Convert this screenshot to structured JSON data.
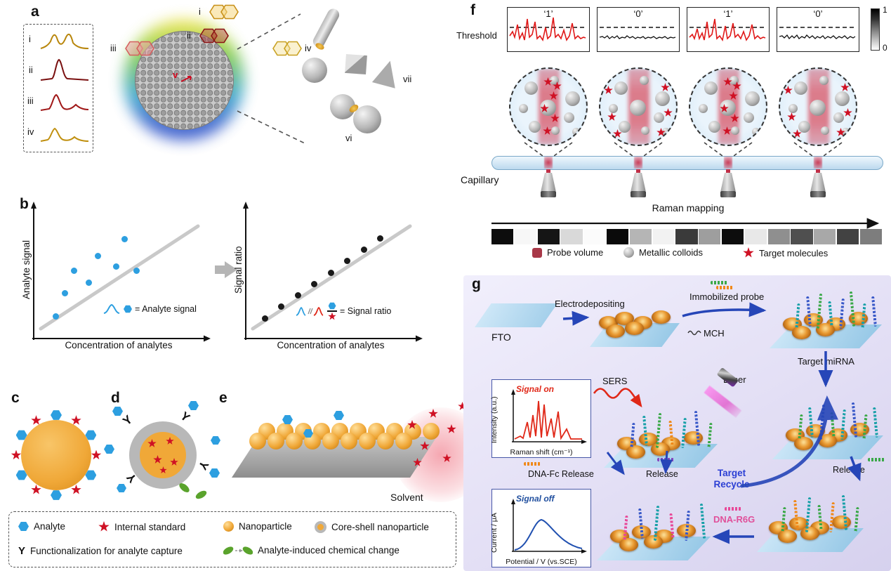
{
  "palette": {
    "analyte_blue": "#2d9fe0",
    "star_red": "#cf1124",
    "nano_orange": "#f0a838",
    "shell_gray": "#b8b8b8",
    "arrow_blue": "#2646b8",
    "signal_on_red": "#e02818",
    "signal_off_blue": "#1f4e9e",
    "recycle_blue": "#2b3fd4",
    "dna_r6g_pink": "#e0509a",
    "probe_red": "#a83848",
    "strand_teal": "#18a0a8",
    "strand_blue": "#3858c8",
    "strand_green": "#3aa848",
    "strand_orange": "#f08818",
    "strand_pink": "#e84898",
    "strand_purple": "#8848c0"
  },
  "panel_a": {
    "label": "a",
    "spectra": [
      {
        "label": "i"
      },
      {
        "label": "ii"
      },
      {
        "label": "iii"
      },
      {
        "label": "iv"
      }
    ],
    "molecules": [
      {
        "label": "i"
      },
      {
        "label": "ii"
      },
      {
        "label": "iii"
      },
      {
        "label": "iv"
      },
      {
        "label": "v"
      }
    ],
    "shapes": [
      {
        "label": "vi"
      },
      {
        "label": "vii"
      }
    ]
  },
  "panel_b": {
    "label": "b",
    "left_plot": {
      "ylabel": "Analyte signal",
      "xlabel": "Concentration of analytes",
      "legend_text": "= Analyte signal",
      "points": [
        [
          0.1,
          0.12
        ],
        [
          0.16,
          0.34
        ],
        [
          0.22,
          0.56
        ],
        [
          0.32,
          0.44
        ],
        [
          0.38,
          0.7
        ],
        [
          0.5,
          0.6
        ],
        [
          0.56,
          0.86
        ],
        [
          0.64,
          0.56
        ]
      ]
    },
    "right_plot": {
      "ylabel": "Signal ratio",
      "xlabel": "Concentration of analytes",
      "legend_text": "= Signal ratio",
      "points": [
        [
          0.08,
          0.1
        ],
        [
          0.19,
          0.21
        ],
        [
          0.3,
          0.32
        ],
        [
          0.41,
          0.43
        ],
        [
          0.52,
          0.54
        ],
        [
          0.63,
          0.65
        ],
        [
          0.74,
          0.76
        ],
        [
          0.85,
          0.87
        ]
      ]
    }
  },
  "panel_c": {
    "label": "c"
  },
  "panel_d": {
    "label": "d"
  },
  "panel_e": {
    "label": "e",
    "solvent": "Solvent"
  },
  "legend": {
    "analyte": "Analyte",
    "internal_standard": "Internal standard",
    "nanoparticle": "Nanoparticle",
    "core_shell": "Core-shell nanoparticle",
    "y_symbol": "Y",
    "functionalization": "Functionalization for analyte capture",
    "chemical_change": "Analyte-induced chemical change"
  },
  "panel_f": {
    "label": "f",
    "threshold": "Threshold",
    "bits": [
      "‘1’",
      "‘0’",
      "‘1’",
      "‘0’"
    ],
    "colorbar_top": "1",
    "colorbar_bottom": "0",
    "capillary": "Capillary",
    "mapping": "Raman mapping",
    "barcode": [
      "#0d0d0d",
      "#f7f7f7",
      "#151515",
      "#d9d9d9",
      "#fbfbfb",
      "#0a0a0a",
      "#b5b5b5",
      "#f2f2f2",
      "#3a3a3a",
      "#9e9e9e",
      "#0d0d0d",
      "#e8e8e8",
      "#8f8f8f",
      "#4f4f4f",
      "#a8a8a8",
      "#424242",
      "#7d7d7d"
    ],
    "legend": {
      "probe_volume": "Probe volume",
      "metallic_colloids": "Metallic colloids",
      "target_molecules": "Target molecules"
    }
  },
  "panel_g": {
    "label": "g",
    "fto": "FTO",
    "electrodepositing": "Electrodepositing",
    "immobilized_probe": "Immobilized probe",
    "mch": "MCH",
    "target_mirna": "Target miRNA",
    "sers": "SERS",
    "laser": "Laser",
    "signal_on": "Signal on",
    "intensity_label": "Intensity (a.u.)",
    "raman_shift_label": "Raman shift (cm⁻¹)",
    "dna_fc_release": "DNA-Fc Release",
    "release_mid": "Release",
    "target_recycle": "Target Recycle",
    "release_right": "Release",
    "signal_off": "Signal off",
    "current_label": "Current / μA",
    "potential_label": "Potential / V (vs.SCE)",
    "dna_r6g": "DNA-R6G",
    "plates": {
      "p2": {
        "golds": 6,
        "strands": []
      },
      "p3": {
        "golds": 6,
        "strands": [
          "teal",
          "blue",
          "green",
          "teal",
          "blue",
          "green",
          "teal",
          "blue"
        ]
      },
      "p4": {
        "golds": 6,
        "strands": [
          "green",
          "teal",
          "blue",
          "green",
          "teal",
          "blue",
          "green",
          "teal"
        ]
      },
      "p5": {
        "golds": 6,
        "strands": [
          "blue",
          "teal",
          "green",
          "orange",
          "teal",
          "blue",
          "green"
        ]
      },
      "p6": {
        "golds": 6,
        "strands": [
          "pink",
          "blue",
          "teal",
          "pink",
          "blue",
          "teal"
        ]
      },
      "p7": {
        "golds": 6,
        "strands": [
          "green",
          "orange",
          "teal",
          "green",
          "orange",
          "teal",
          "green"
        ]
      }
    }
  }
}
